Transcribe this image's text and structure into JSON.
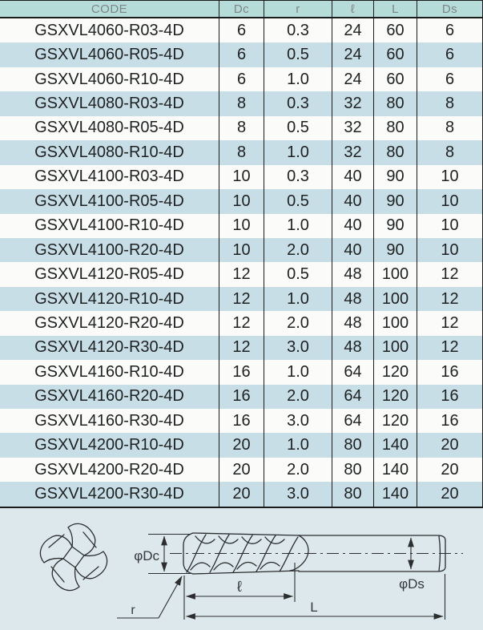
{
  "colors": {
    "page_bg": "#dce8ec",
    "header_bg": "#b6dcda",
    "stripe_bg": "#c8dee6",
    "row_bg": "#fbfbf9",
    "line": "#1b1b1b",
    "header_text": "#7c8688",
    "cell_text": "#1e2122",
    "draw_line": "#2b2d2e",
    "draw_text": "#34383a"
  },
  "table": {
    "headers": [
      "CODE",
      "Dc",
      "r",
      "ℓ",
      "L",
      "Ds"
    ],
    "rows": [
      [
        "GSXVL4060-R03-4D",
        "6",
        "0.3",
        "24",
        "60",
        "6"
      ],
      [
        "GSXVL4060-R05-4D",
        "6",
        "0.5",
        "24",
        "60",
        "6"
      ],
      [
        "GSXVL4060-R10-4D",
        "6",
        "1.0",
        "24",
        "60",
        "6"
      ],
      [
        "GSXVL4080-R03-4D",
        "8",
        "0.3",
        "32",
        "80",
        "8"
      ],
      [
        "GSXVL4080-R05-4D",
        "8",
        "0.5",
        "32",
        "80",
        "8"
      ],
      [
        "GSXVL4080-R10-4D",
        "8",
        "1.0",
        "32",
        "80",
        "8"
      ],
      [
        "GSXVL4100-R03-4D",
        "10",
        "0.3",
        "40",
        "90",
        "10"
      ],
      [
        "GSXVL4100-R05-4D",
        "10",
        "0.5",
        "40",
        "90",
        "10"
      ],
      [
        "GSXVL4100-R10-4D",
        "10",
        "1.0",
        "40",
        "90",
        "10"
      ],
      [
        "GSXVL4100-R20-4D",
        "10",
        "2.0",
        "40",
        "90",
        "10"
      ],
      [
        "GSXVL4120-R05-4D",
        "12",
        "0.5",
        "48",
        "100",
        "12"
      ],
      [
        "GSXVL4120-R10-4D",
        "12",
        "1.0",
        "48",
        "100",
        "12"
      ],
      [
        "GSXVL4120-R20-4D",
        "12",
        "2.0",
        "48",
        "100",
        "12"
      ],
      [
        "GSXVL4120-R30-4D",
        "12",
        "3.0",
        "48",
        "100",
        "12"
      ],
      [
        "GSXVL4160-R10-4D",
        "16",
        "1.0",
        "64",
        "120",
        "16"
      ],
      [
        "GSXVL4160-R20-4D",
        "16",
        "2.0",
        "64",
        "120",
        "16"
      ],
      [
        "GSXVL4160-R30-4D",
        "16",
        "3.0",
        "64",
        "120",
        "16"
      ],
      [
        "GSXVL4200-R10-4D",
        "20",
        "1.0",
        "80",
        "140",
        "20"
      ],
      [
        "GSXVL4200-R20-4D",
        "20",
        "2.0",
        "80",
        "140",
        "20"
      ],
      [
        "GSXVL4200-R30-4D",
        "20",
        "3.0",
        "80",
        "140",
        "20"
      ]
    ]
  },
  "diagram": {
    "labels": {
      "dc": "φDc",
      "flute_length": "ℓ",
      "overall_length": "L",
      "ds": "φDs",
      "corner_radius": "r"
    }
  }
}
